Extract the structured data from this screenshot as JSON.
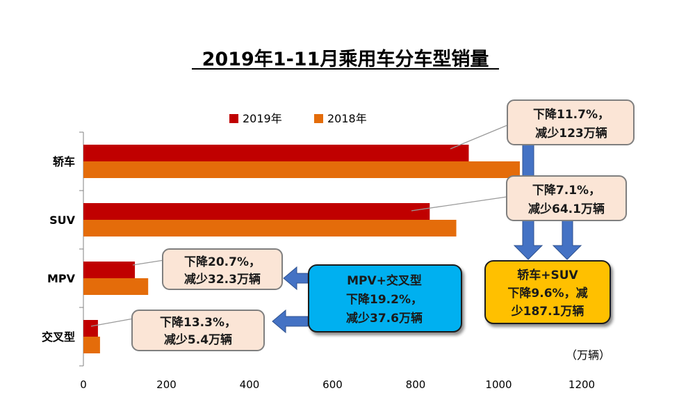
{
  "chart_data": {
    "type": "bar",
    "orientation": "horizontal",
    "title": "2019年1-11月乘用车分车型销量",
    "unit_label": "（万辆）",
    "categories": [
      "轿车",
      "SUV",
      "MPV",
      "交叉型"
    ],
    "series": [
      {
        "name": "2019年",
        "color": "#c00000",
        "values": [
          928,
          834,
          124,
          35
        ]
      },
      {
        "name": "2018年",
        "color": "#e46c0a",
        "values": [
          1051,
          898,
          156,
          40
        ]
      }
    ],
    "xlim": [
      0,
      1200
    ],
    "x_ticks": [
      "0",
      "200",
      "400",
      "600",
      "800",
      "1000",
      "1200"
    ],
    "grid": false,
    "legend_position": "top"
  },
  "callouts": {
    "sedan": [
      "下降11.7%，",
      "减少123万辆"
    ],
    "suv": [
      "下降7.1%，",
      "减少64.1万辆"
    ],
    "mpv": [
      "下降20.7%，",
      "减少32.3万辆"
    ],
    "crossover": [
      "下降13.3%，",
      "减少5.4万辆"
    ],
    "mpv_crossover": [
      "MPV+交叉型",
      "下降19.2%，",
      "减少37.6万辆"
    ],
    "sedan_suv": [
      "轿车+SUV",
      "下降9.6%，减",
      "少187.1万辆"
    ]
  },
  "colors": {
    "callout_fill": "#fbe5d6",
    "callout_stroke": "#7f7f7f",
    "arrow": "#4472c4",
    "mpv_crossover_fill": "#00b0f0",
    "sedan_suv_fill": "#ffc000"
  }
}
